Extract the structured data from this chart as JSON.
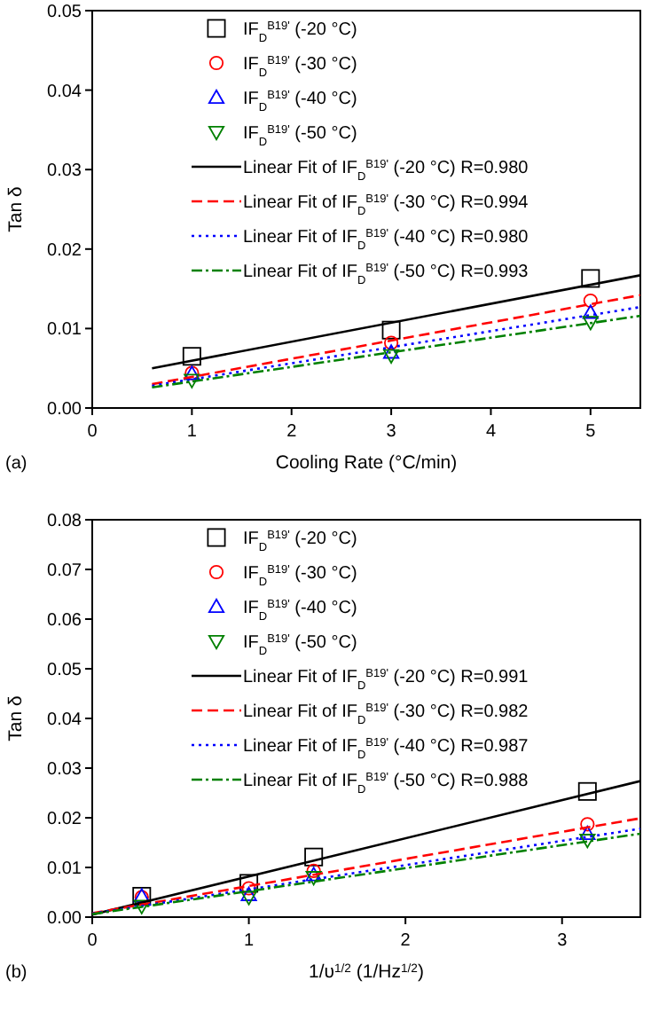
{
  "chart_data": [
    {
      "type": "scatter",
      "annotations": [
        "(a)"
      ],
      "xlabel": "Cooling Rate (°C/min)",
      "ylabel": "Tan δ",
      "xlim": [
        0,
        5.5
      ],
      "xticks": [
        0,
        1,
        2,
        3,
        4,
        5
      ],
      "ylim": [
        0,
        0.05
      ],
      "yticks": [
        {
          "value": 0,
          "label": "0.00"
        },
        {
          "value": 0.01,
          "label": "0.01"
        },
        {
          "value": 0.02,
          "label": "0.02"
        },
        {
          "value": 0.03,
          "label": "0.03"
        },
        {
          "value": 0.04,
          "label": "0.04"
        },
        {
          "value": 0.05,
          "label": "0.05"
        }
      ],
      "grid": false,
      "legend": "top left",
      "series": [
        {
          "name": "IF$_{D}$$^{B19'}$ (-20 °C)",
          "color": "#000000",
          "marker": "square",
          "x": [
            1,
            3,
            5
          ],
          "values": [
            0.0065,
            0.0098,
            0.0163
          ]
        },
        {
          "name": "IF$_{D}$$^{B19'}$ (-30 °C)",
          "color": "#ff0000",
          "marker": "circle",
          "x": [
            1,
            3,
            5
          ],
          "values": [
            0.0044,
            0.0082,
            0.0135
          ]
        },
        {
          "name": "IF$_{D}$$^{B19'}$ (-40 °C)",
          "color": "#0000ff",
          "marker": "triangle",
          "x": [
            1,
            3,
            5
          ],
          "values": [
            0.0043,
            0.007,
            0.012
          ]
        },
        {
          "name": "IF$_{D}$$^{B19'}$ (-50 °C)",
          "color": "#008000",
          "marker": "triangle-down",
          "x": [
            1,
            3,
            5
          ],
          "values": [
            0.0035,
            0.0066,
            0.0108
          ]
        },
        {
          "type": "line",
          "name": "Linear Fit of IF$_{D}$$^{B19'}$ (-20 °C)  R=0.980",
          "color": "#000000",
          "line_style": "solid",
          "marker": "none",
          "x": [
            0.6,
            5.5
          ],
          "values": [
            0.005,
            0.0167
          ]
        },
        {
          "type": "line",
          "name": "Linear Fit of IF$_{D}$$^{B19'}$ (-30 °C)  R=0.994",
          "color": "#ff0000",
          "line_style": "dashed",
          "marker": "none",
          "x": [
            0.6,
            5.5
          ],
          "values": [
            0.003,
            0.0142
          ]
        },
        {
          "type": "line",
          "name": "Linear Fit of IF$_{D}$$^{B19'}$ (-40 °C)  R=0.980",
          "color": "#0000ff",
          "line_style": "dotted",
          "marker": "none",
          "x": [
            0.6,
            5.5
          ],
          "values": [
            0.0028,
            0.0127
          ]
        },
        {
          "type": "line",
          "name": "Linear Fit of IF$_{D}$$^{B19'}$ (-50 °C)  R=0.993",
          "color": "#008000",
          "line_style": "dashdot",
          "marker": "none",
          "x": [
            0.6,
            5.5
          ],
          "values": [
            0.0026,
            0.0116
          ]
        }
      ]
    },
    {
      "type": "scatter",
      "annotations": [
        "(b)"
      ],
      "xlabel": "1/υ$^{1/2}$  (1/Hz$^{1/2}$)",
      "ylabel": "Tan δ",
      "xlim": [
        0,
        3.5
      ],
      "xticks": [
        0,
        1,
        2,
        3
      ],
      "ylim": [
        0,
        0.08
      ],
      "yticks": [
        {
          "value": 0,
          "label": "0.00"
        },
        {
          "value": 0.01,
          "label": "0.01"
        },
        {
          "value": 0.02,
          "label": "0.02"
        },
        {
          "value": 0.03,
          "label": "0.03"
        },
        {
          "value": 0.04,
          "label": "0.04"
        },
        {
          "value": 0.05,
          "label": "0.05"
        },
        {
          "value": 0.06,
          "label": "0.06"
        },
        {
          "value": 0.07,
          "label": "0.07"
        },
        {
          "value": 0.08,
          "label": "0.08"
        }
      ],
      "grid": false,
      "legend": "top left",
      "series": [
        {
          "name": "IF$_{D}$$^{B19'}$ (-20 °C)",
          "color": "#000000",
          "marker": "square",
          "x": [
            0.316,
            1,
            1.414,
            3.162
          ],
          "values": [
            0.0042,
            0.0068,
            0.0121,
            0.0253
          ]
        },
        {
          "name": "IF$_{D}$$^{B19'}$ (-30 °C)",
          "color": "#ff0000",
          "marker": "circle",
          "x": [
            0.316,
            1,
            1.414,
            3.162
          ],
          "values": [
            0.004,
            0.0058,
            0.0093,
            0.0187
          ]
        },
        {
          "name": "IF$_{D}$$^{B19'}$ (-40 °C)",
          "color": "#0000ff",
          "marker": "triangle",
          "x": [
            0.316,
            1,
            1.414,
            3.162
          ],
          "values": [
            0.0042,
            0.0045,
            0.0085,
            0.0168
          ]
        },
        {
          "name": "IF$_{D}$$^{B19'}$ (-50 °C)",
          "color": "#008000",
          "marker": "triangle-down",
          "x": [
            0.316,
            1,
            1.414,
            3.162
          ],
          "values": [
            0.0022,
            0.004,
            0.008,
            0.0155
          ]
        },
        {
          "type": "line",
          "name": "Linear Fit of IF$_{D}$$^{B19'}$ (-20 °C)  R=0.991",
          "color": "#000000",
          "line_style": "solid",
          "marker": "none",
          "x": [
            0,
            3.5
          ],
          "values": [
            0.0005,
            0.0274
          ]
        },
        {
          "type": "line",
          "name": "Linear Fit of IF$_{D}$$^{B19'}$ (-30 °C)  R=0.982",
          "color": "#ff0000",
          "line_style": "dashed",
          "marker": "none",
          "x": [
            0,
            3.5
          ],
          "values": [
            0.0008,
            0.0199
          ]
        },
        {
          "type": "line",
          "name": "Linear Fit of IF$_{D}$$^{B19'}$ (-40 °C)  R=0.987",
          "color": "#0000ff",
          "line_style": "dotted",
          "marker": "none",
          "x": [
            0,
            3.5
          ],
          "values": [
            0.0007,
            0.0178
          ]
        },
        {
          "type": "line",
          "name": "Linear Fit of IF$_{D}$$^{B19'}$ (-50 °C)  R=0.988",
          "color": "#008000",
          "line_style": "dashdot",
          "marker": "none",
          "x": [
            0,
            3.5
          ],
          "values": [
            0.0006,
            0.0168
          ]
        }
      ]
    }
  ]
}
